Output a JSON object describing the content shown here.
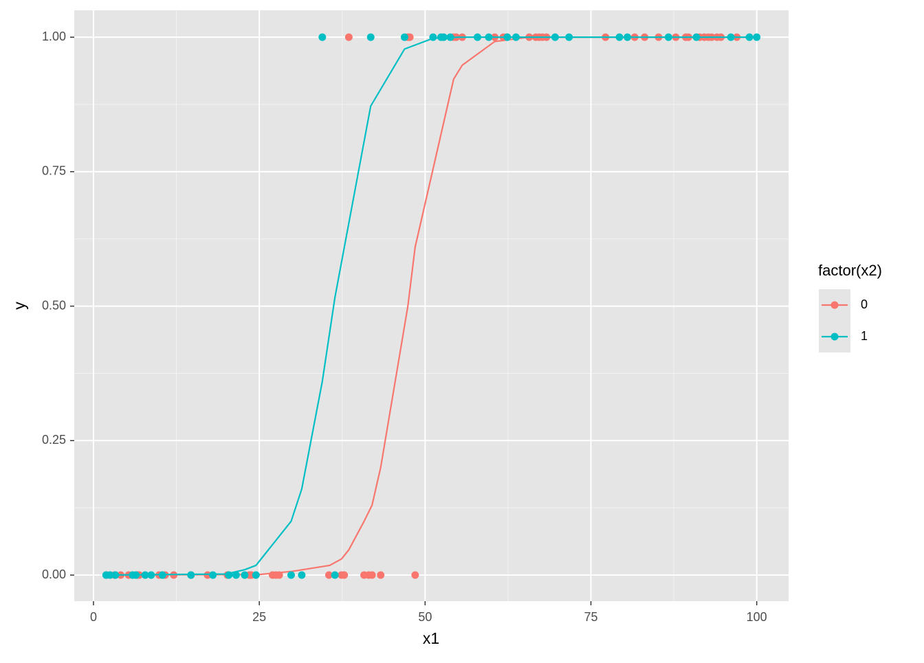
{
  "chart_data": {
    "type": "scatter",
    "x_label": "x1",
    "y_label": "y",
    "legend_title": "factor(x2)",
    "legend_position": "right",
    "grid": true,
    "xlim": [
      -2.9,
      104.8
    ],
    "ylim": [
      -0.0485,
      1.05
    ],
    "xticks": [
      0,
      25,
      50,
      75,
      100
    ],
    "minor_xticks": [
      12.5,
      37.5,
      62.5,
      87.5
    ],
    "yticks": [
      {
        "value": 0,
        "label": "0.00"
      },
      {
        "value": 0.25,
        "label": "0.25"
      },
      {
        "value": 0.5,
        "label": "0.50"
      },
      {
        "value": 0.75,
        "label": "0.75"
      },
      {
        "value": 1,
        "label": "1.00"
      }
    ],
    "minor_yticks": [
      0.125,
      0.375,
      0.625,
      0.875
    ],
    "series": [
      {
        "name": "0",
        "color": "#f8766d",
        "x": [
          1.97,
          3.2,
          4.1,
          5.3,
          6.6,
          6.9,
          9.9,
          10.8,
          12.1,
          14.7,
          17.2,
          20.2,
          23.5,
          23.8,
          27.0,
          27.5,
          28.0,
          35.5,
          37.4,
          37.8,
          40.8,
          41.5,
          42.0,
          43.3,
          48.5,
          38.5,
          47.4,
          47.7,
          54.3,
          54.7,
          55.6,
          60.5,
          61.8,
          62.3,
          65.7,
          66.7,
          67.2,
          67.7,
          68.3,
          77.2,
          81.6,
          83.1,
          85.2,
          87.8,
          89.3,
          89.7,
          91.4,
          92.1,
          92.7,
          93.2,
          94.0,
          94.6,
          97.0
        ],
        "values": [
          0,
          0,
          0,
          0,
          0,
          0,
          0,
          0,
          0,
          0,
          0,
          0,
          0,
          0,
          0,
          0,
          0,
          0,
          0,
          0,
          0,
          0,
          0,
          0,
          0,
          1,
          1,
          1,
          1,
          1,
          1,
          1,
          1,
          1,
          1,
          1,
          1,
          1,
          1,
          1,
          1,
          1,
          1,
          1,
          1,
          1,
          1,
          1,
          1,
          1,
          1,
          1,
          1
        ],
        "fit_x": [
          2,
          25,
          30,
          35.6,
          37.4,
          38.5,
          40.8,
          42,
          43.3,
          47.4,
          48.5,
          54.3,
          55.6,
          60.5,
          65,
          68,
          100
        ],
        "fit_values": [
          0,
          0.001,
          0.007,
          0.018,
          0.03,
          0.047,
          0.1,
          0.13,
          0.2,
          0.5,
          0.61,
          0.922,
          0.948,
          0.992,
          0.999,
          1,
          1
        ]
      },
      {
        "name": "1",
        "color": "#00bfc4",
        "x": [
          1.9,
          2.5,
          3.3,
          5.9,
          6.4,
          7.8,
          8.7,
          10.4,
          14.7,
          18.0,
          20.4,
          21.5,
          22.8,
          24.5,
          29.8,
          31.4,
          36.4,
          34.5,
          41.8,
          46.9,
          51.2,
          52.4,
          52.8,
          53.8,
          57.9,
          59.6,
          62.4,
          63.7,
          69.6,
          71.7,
          79.3,
          80.5,
          86.7,
          90.9,
          96.1,
          98.9,
          100
        ],
        "values": [
          0,
          0,
          0,
          0,
          0,
          0,
          0,
          0,
          0,
          0,
          0,
          0,
          0,
          0,
          0,
          0,
          0,
          1,
          1,
          1,
          1,
          1,
          1,
          1,
          1,
          1,
          1,
          1,
          1,
          1,
          1,
          1,
          1,
          1,
          1,
          1,
          1
        ],
        "fit_x": [
          2,
          20,
          22.8,
          24.5,
          29.8,
          31.4,
          34.5,
          36.4,
          41.8,
          46.9,
          51.2,
          55,
          100
        ],
        "fit_values": [
          0,
          0.002,
          0.01,
          0.018,
          0.1,
          0.16,
          0.36,
          0.516,
          0.872,
          0.978,
          0.998,
          1,
          1
        ]
      }
    ]
  }
}
